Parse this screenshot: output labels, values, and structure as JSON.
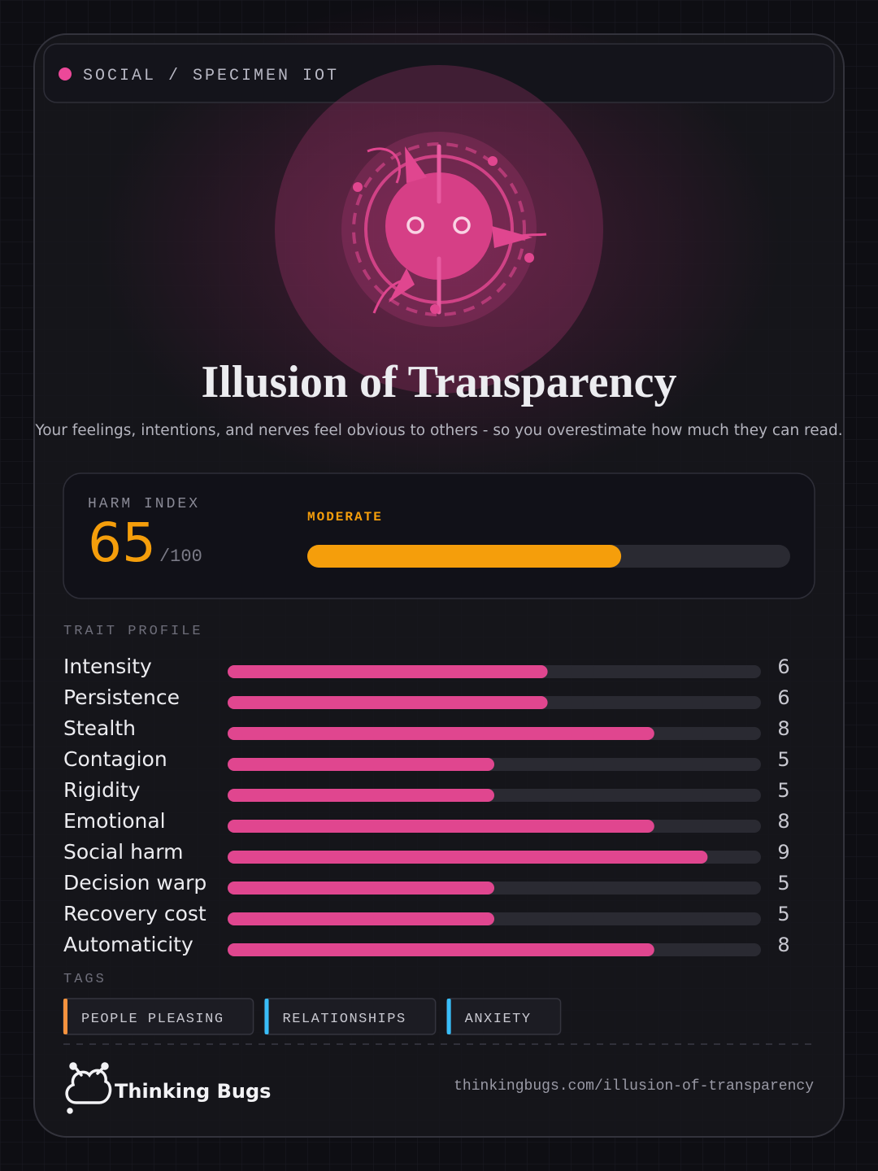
{
  "header": {
    "label": "SOCIAL / SPECIMEN IOT"
  },
  "title": "Illusion of Transparency",
  "subtitle": "Your feelings, intentions, and nerves feel obvious to others - so you overestimate how much they can read.",
  "harm": {
    "label": "HARM INDEX",
    "value": 65,
    "max": {
      "value": 100,
      "label": "/100"
    },
    "rating": "MODERATE",
    "color": "#f59e0b"
  },
  "traits": {
    "label": "TRAIT PROFILE",
    "xlim": [
      0,
      10
    ],
    "color": "#e0468f",
    "items": [
      {
        "name": "Intensity",
        "value": 6
      },
      {
        "name": "Persistence",
        "value": 6
      },
      {
        "name": "Stealth",
        "value": 8
      },
      {
        "name": "Contagion",
        "value": 5
      },
      {
        "name": "Rigidity",
        "value": 5
      },
      {
        "name": "Emotional",
        "value": 8
      },
      {
        "name": "Social harm",
        "value": 9
      },
      {
        "name": "Decision warp",
        "value": 5
      },
      {
        "name": "Recovery cost",
        "value": 5
      },
      {
        "name": "Automaticity",
        "value": 8
      }
    ]
  },
  "tags": {
    "label": "TAGS",
    "items": [
      {
        "name": "PEOPLE PLEASING",
        "color": "#f5923e"
      },
      {
        "name": "RELATIONSHIPS",
        "color": "#38bdf8"
      },
      {
        "name": "ANXIETY",
        "color": "#38bdf8"
      }
    ]
  },
  "footer": {
    "brand": "Thinking Bugs",
    "url": "thinkingbugs.com/illusion-of-transparency"
  }
}
